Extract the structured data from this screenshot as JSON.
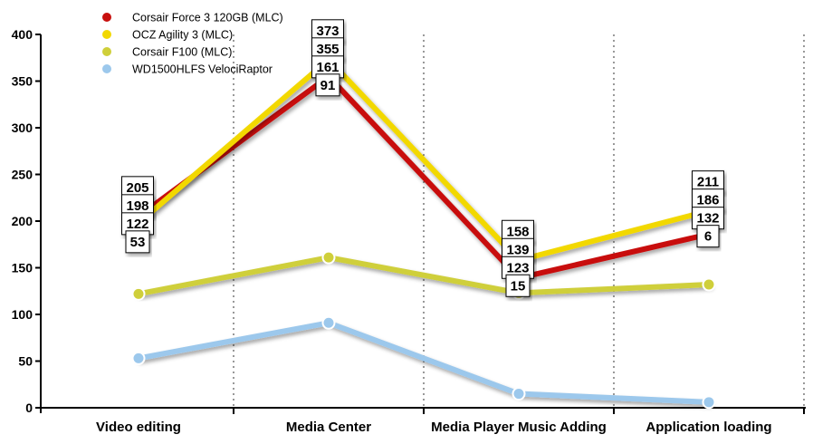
{
  "chart_data": {
    "type": "line",
    "title": "",
    "xlabel": "",
    "ylabel": "",
    "categories": [
      "Video editing",
      "Media Center",
      "Media Player Music Adding",
      "Application loading"
    ],
    "ylim": [
      0,
      400
    ],
    "yticks": [
      0,
      50,
      100,
      150,
      200,
      250,
      300,
      350,
      400
    ],
    "grid": "vertical dotted",
    "legend_position": "top-left",
    "series": [
      {
        "name": "Corsair Force 3  120GB (MLC)",
        "color": "#c8100e",
        "values": [
          205,
          355,
          139,
          186
        ]
      },
      {
        "name": "OCZ Agility 3 (MLC)",
        "color": "#f2d800",
        "values": [
          198,
          373,
          158,
          211
        ]
      },
      {
        "name": "Corsair F100 (MLC)",
        "color": "#cfcf3a",
        "values": [
          122,
          161,
          123,
          132
        ]
      },
      {
        "name": "WD1500HLFS VelociRaptor",
        "color": "#9cc8ec",
        "values": [
          53,
          91,
          15,
          6
        ]
      }
    ],
    "data_labels": [
      {
        "series": 0,
        "index": 0,
        "text": "205"
      },
      {
        "series": 1,
        "index": 0,
        "text": "198"
      },
      {
        "series": 1,
        "index": 1,
        "text": "373"
      },
      {
        "series": 0,
        "index": 1,
        "text": "355"
      },
      {
        "series": 1,
        "index": 2,
        "text": "158"
      },
      {
        "series": 0,
        "index": 2,
        "text": "139"
      },
      {
        "series": 2,
        "index": 2,
        "text": "123"
      },
      {
        "series": 1,
        "index": 3,
        "text": "211"
      },
      {
        "series": 0,
        "index": 3,
        "text": "186"
      },
      {
        "series": 2,
        "index": 0,
        "text": "122"
      },
      {
        "series": 2,
        "index": 1,
        "text": "161"
      },
      {
        "series": 2,
        "index": 3,
        "text": "132"
      },
      {
        "series": 3,
        "index": 0,
        "text": "53"
      },
      {
        "series": 3,
        "index": 1,
        "text": "91"
      },
      {
        "series": 3,
        "index": 2,
        "text": "15"
      },
      {
        "series": 3,
        "index": 3,
        "text": "6"
      }
    ]
  }
}
